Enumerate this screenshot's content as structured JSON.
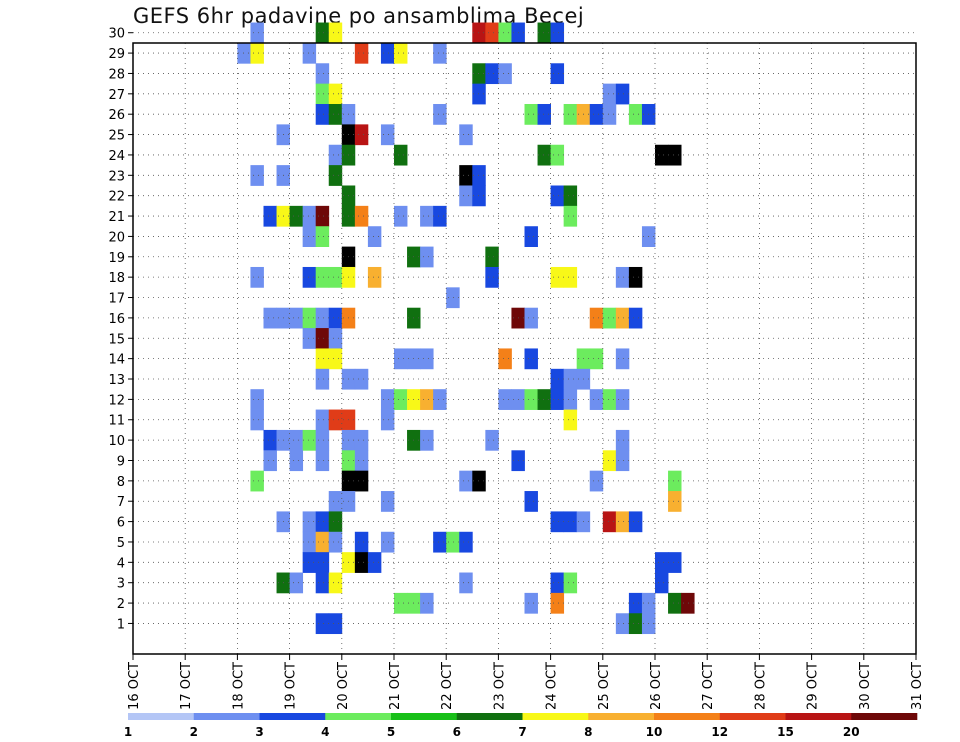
{
  "title": "GEFS 6hr padavine po ansamblima Becej",
  "chart_data": {
    "type": "heatmap",
    "title": "GEFS 6hr padavine po ansamblima Becej",
    "x_ticks": [
      "16 OCT",
      "17 OCT",
      "18 OCT",
      "19 OCT",
      "20 OCT",
      "21 OCT",
      "22 OCT",
      "23 OCT",
      "24 OCT",
      "25 OCT",
      "26 OCT",
      "27 OCT",
      "28 OCT",
      "29 OCT",
      "30 OCT",
      "31 OCT"
    ],
    "y_ticks": [
      1,
      2,
      3,
      4,
      5,
      6,
      7,
      8,
      9,
      10,
      11,
      12,
      13,
      14,
      15,
      16,
      17,
      18,
      19,
      20,
      21,
      22,
      23,
      24,
      25,
      26,
      27,
      28,
      29,
      30
    ],
    "grid": true,
    "colorbar": {
      "labels": [
        "1",
        "2",
        "3",
        "4",
        "5",
        "6",
        "7",
        "8",
        "10",
        "12",
        "15",
        "20"
      ],
      "colors": [
        "#b4c6f6",
        "#6e8ff0",
        "#1848e0",
        "#6cec5e",
        "#18c018",
        "#107010",
        "#f8f818",
        "#f8b030",
        "#f48018",
        "#e03c18",
        "#b81414",
        "#6e0808"
      ]
    },
    "cells": [
      [
        30,
        9,
        1
      ],
      [
        30,
        14,
        5
      ],
      [
        30,
        15,
        6
      ],
      [
        30,
        26,
        10
      ],
      [
        30,
        27,
        9
      ],
      [
        30,
        28,
        3
      ],
      [
        30,
        29,
        2
      ],
      [
        30,
        31,
        5
      ],
      [
        30,
        32,
        2
      ],
      [
        29,
        8,
        1
      ],
      [
        29,
        9,
        6
      ],
      [
        29,
        13,
        1
      ],
      [
        29,
        17,
        9
      ],
      [
        29,
        19,
        2
      ],
      [
        29,
        20,
        6
      ],
      [
        29,
        23,
        1
      ],
      [
        28,
        14,
        1
      ],
      [
        28,
        26,
        5
      ],
      [
        28,
        27,
        2
      ],
      [
        28,
        28,
        1
      ],
      [
        28,
        32,
        2
      ],
      [
        27,
        14,
        3
      ],
      [
        27,
        15,
        6
      ],
      [
        27,
        26,
        2
      ],
      [
        27,
        36,
        1
      ],
      [
        27,
        37,
        2
      ],
      [
        26,
        14,
        2
      ],
      [
        26,
        15,
        5
      ],
      [
        26,
        16,
        1
      ],
      [
        26,
        23,
        1
      ],
      [
        26,
        30,
        3
      ],
      [
        26,
        31,
        2
      ],
      [
        26,
        33,
        3
      ],
      [
        26,
        34,
        7
      ],
      [
        26,
        35,
        2
      ],
      [
        26,
        36,
        1
      ],
      [
        26,
        38,
        3
      ],
      [
        26,
        39,
        2
      ],
      [
        25,
        11,
        1
      ],
      [
        25,
        16,
        13
      ],
      [
        25,
        17,
        10
      ],
      [
        25,
        19,
        1
      ],
      [
        25,
        25,
        1
      ],
      [
        24,
        15,
        1
      ],
      [
        24,
        16,
        5
      ],
      [
        24,
        20,
        5
      ],
      [
        24,
        31,
        5
      ],
      [
        24,
        32,
        3
      ],
      [
        24,
        40,
        13
      ],
      [
        24,
        41,
        14
      ],
      [
        23,
        9,
        1
      ],
      [
        23,
        11,
        1
      ],
      [
        23,
        15,
        5
      ],
      [
        23,
        25,
        12
      ],
      [
        23,
        26,
        2
      ],
      [
        22,
        16,
        5
      ],
      [
        22,
        25,
        1
      ],
      [
        22,
        26,
        2
      ],
      [
        22,
        32,
        2
      ],
      [
        22,
        33,
        5
      ],
      [
        21,
        10,
        2
      ],
      [
        21,
        11,
        6
      ],
      [
        21,
        12,
        5
      ],
      [
        21,
        13,
        1
      ],
      [
        21,
        14,
        11
      ],
      [
        21,
        16,
        5
      ],
      [
        21,
        17,
        8
      ],
      [
        21,
        20,
        1
      ],
      [
        21,
        22,
        1
      ],
      [
        21,
        23,
        2
      ],
      [
        21,
        33,
        3
      ],
      [
        20,
        13,
        1
      ],
      [
        20,
        14,
        3
      ],
      [
        20,
        18,
        1
      ],
      [
        20,
        30,
        2
      ],
      [
        20,
        39,
        1
      ],
      [
        19,
        16,
        13
      ],
      [
        19,
        21,
        5
      ],
      [
        19,
        22,
        1
      ],
      [
        19,
        27,
        5
      ],
      [
        18,
        9,
        1
      ],
      [
        18,
        13,
        2
      ],
      [
        18,
        14,
        3
      ],
      [
        18,
        15,
        3
      ],
      [
        18,
        16,
        6
      ],
      [
        18,
        18,
        7
      ],
      [
        18,
        27,
        2
      ],
      [
        18,
        32,
        6
      ],
      [
        18,
        33,
        6
      ],
      [
        18,
        37,
        1
      ],
      [
        18,
        38,
        13
      ],
      [
        17,
        24,
        1
      ],
      [
        16,
        10,
        1
      ],
      [
        16,
        11,
        1
      ],
      [
        16,
        12,
        1
      ],
      [
        16,
        13,
        3
      ],
      [
        16,
        14,
        1
      ],
      [
        16,
        15,
        2
      ],
      [
        16,
        16,
        8
      ],
      [
        16,
        21,
        5
      ],
      [
        16,
        29,
        11
      ],
      [
        16,
        30,
        1
      ],
      [
        16,
        35,
        8
      ],
      [
        16,
        36,
        3
      ],
      [
        16,
        37,
        7
      ],
      [
        16,
        38,
        2
      ],
      [
        15,
        13,
        1
      ],
      [
        15,
        14,
        11
      ],
      [
        15,
        15,
        1
      ],
      [
        14,
        14,
        6
      ],
      [
        14,
        15,
        6
      ],
      [
        14,
        20,
        1
      ],
      [
        14,
        21,
        1
      ],
      [
        14,
        22,
        1
      ],
      [
        14,
        28,
        8
      ],
      [
        14,
        30,
        2
      ],
      [
        14,
        34,
        3
      ],
      [
        14,
        35,
        3
      ],
      [
        14,
        37,
        1
      ],
      [
        13,
        14,
        1
      ],
      [
        13,
        16,
        1
      ],
      [
        13,
        17,
        1
      ],
      [
        13,
        32,
        2
      ],
      [
        13,
        33,
        1
      ],
      [
        13,
        34,
        1
      ],
      [
        12,
        9,
        1
      ],
      [
        12,
        19,
        1
      ],
      [
        12,
        20,
        3
      ],
      [
        12,
        21,
        6
      ],
      [
        12,
        22,
        7
      ],
      [
        12,
        23,
        1
      ],
      [
        12,
        28,
        1
      ],
      [
        12,
        29,
        1
      ],
      [
        12,
        30,
        3
      ],
      [
        12,
        31,
        5
      ],
      [
        12,
        32,
        2
      ],
      [
        12,
        33,
        1
      ],
      [
        12,
        35,
        1
      ],
      [
        12,
        36,
        3
      ],
      [
        12,
        37,
        1
      ],
      [
        11,
        9,
        1
      ],
      [
        11,
        14,
        1
      ],
      [
        11,
        15,
        9
      ],
      [
        11,
        16,
        9
      ],
      [
        11,
        19,
        1
      ],
      [
        11,
        33,
        6
      ],
      [
        10,
        10,
        2
      ],
      [
        10,
        11,
        1
      ],
      [
        10,
        12,
        1
      ],
      [
        10,
        13,
        3
      ],
      [
        10,
        14,
        1
      ],
      [
        10,
        16,
        1
      ],
      [
        10,
        17,
        1
      ],
      [
        10,
        21,
        5
      ],
      [
        10,
        22,
        1
      ],
      [
        10,
        27,
        1
      ],
      [
        10,
        37,
        1
      ],
      [
        9,
        10,
        1
      ],
      [
        9,
        12,
        1
      ],
      [
        9,
        14,
        1
      ],
      [
        9,
        16,
        3
      ],
      [
        9,
        17,
        1
      ],
      [
        9,
        29,
        2
      ],
      [
        9,
        36,
        6
      ],
      [
        9,
        37,
        1
      ],
      [
        8,
        9,
        3
      ],
      [
        8,
        16,
        13
      ],
      [
        8,
        17,
        12
      ],
      [
        8,
        25,
        1
      ],
      [
        8,
        26,
        12
      ],
      [
        8,
        35,
        1
      ],
      [
        8,
        41,
        3
      ],
      [
        7,
        15,
        1
      ],
      [
        7,
        16,
        1
      ],
      [
        7,
        19,
        1
      ],
      [
        7,
        30,
        2
      ],
      [
        7,
        41,
        7
      ],
      [
        6,
        11,
        1
      ],
      [
        6,
        13,
        1
      ],
      [
        6,
        14,
        2
      ],
      [
        6,
        15,
        5
      ],
      [
        6,
        32,
        2
      ],
      [
        6,
        33,
        2
      ],
      [
        6,
        34,
        1
      ],
      [
        6,
        36,
        10
      ],
      [
        6,
        37,
        7
      ],
      [
        6,
        38,
        2
      ],
      [
        5,
        13,
        1
      ],
      [
        5,
        14,
        7
      ],
      [
        5,
        15,
        1
      ],
      [
        5,
        17,
        2
      ],
      [
        5,
        19,
        1
      ],
      [
        5,
        23,
        2
      ],
      [
        5,
        24,
        3
      ],
      [
        5,
        25,
        2
      ],
      [
        4,
        13,
        2
      ],
      [
        4,
        14,
        2
      ],
      [
        4,
        16,
        6
      ],
      [
        4,
        17,
        14
      ],
      [
        4,
        18,
        2
      ],
      [
        4,
        40,
        2
      ],
      [
        4,
        41,
        2
      ],
      [
        3,
        11,
        5
      ],
      [
        3,
        12,
        1
      ],
      [
        3,
        14,
        2
      ],
      [
        3,
        15,
        6
      ],
      [
        3,
        25,
        1
      ],
      [
        3,
        32,
        2
      ],
      [
        3,
        33,
        3
      ],
      [
        3,
        40,
        2
      ],
      [
        2,
        20,
        3
      ],
      [
        2,
        21,
        3
      ],
      [
        2,
        22,
        1
      ],
      [
        2,
        30,
        1
      ],
      [
        2,
        32,
        8
      ],
      [
        2,
        38,
        2
      ],
      [
        2,
        39,
        1
      ],
      [
        2,
        41,
        5
      ],
      [
        2,
        42,
        11
      ],
      [
        1,
        14,
        2
      ],
      [
        1,
        15,
        2
      ],
      [
        1,
        37,
        1
      ],
      [
        1,
        38,
        5
      ],
      [
        1,
        39,
        1
      ]
    ]
  }
}
